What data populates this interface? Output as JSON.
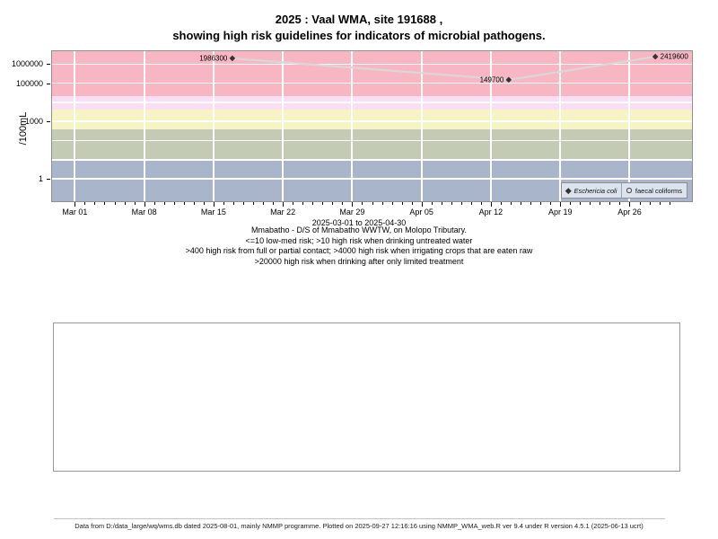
{
  "title": {
    "line1": "2025 : Vaal WMA, site 191688 ,",
    "line2": "showing high risk guidelines for indicators of microbial pathogens."
  },
  "chart_data": {
    "type": "line",
    "title": "2025 : Vaal WMA, site 191688 , showing high risk guidelines for indicators of microbial pathogens.",
    "xlabel": "2025-03-01 to 2025-04-30",
    "ylabel": "/100mL",
    "grid": true,
    "gridline_color": "#FFFFFF",
    "x_axis": {
      "start_date": "2025-03-01",
      "end_date": "2025-04-30",
      "range_days": [
        -2.3,
        62.3
      ],
      "minor_tick_day_span": [
        0,
        60
      ],
      "ticks": [
        {
          "label": "Mar 01",
          "day": 0
        },
        {
          "label": "Mar 08",
          "day": 7
        },
        {
          "label": "Mar 15",
          "day": 14
        },
        {
          "label": "Mar 22",
          "day": 21
        },
        {
          "label": "Mar 29",
          "day": 28
        },
        {
          "label": "Apr 05",
          "day": 35
        },
        {
          "label": "Apr 12",
          "day": 42
        },
        {
          "label": "Apr 19",
          "day": 49
        },
        {
          "label": "Apr 26",
          "day": 56
        }
      ]
    },
    "y_axis": {
      "scale": "log10",
      "log10_range": [
        -1.17,
        6.67
      ],
      "ticks": [
        {
          "label": "1000000",
          "value": 1000000
        },
        {
          "label": "100000",
          "value": 100000
        },
        {
          "label": "1000",
          "value": 1000
        },
        {
          "label": "1",
          "value": 1
        }
      ],
      "gridline_values": [
        1,
        10,
        100,
        1000,
        10000,
        100000,
        1000000
      ]
    },
    "bands": [
      {
        "name": "gt-20000-drinking-limited-treatment",
        "from": 20000,
        "to": null,
        "color": "#F8B6C2"
      },
      {
        "name": "4000-20000-irrigating-raw-crops",
        "from": 4000,
        "to": 20000,
        "color": "#FADEF3"
      },
      {
        "name": "400-4000-full-partial-contact",
        "from": 400,
        "to": 4000,
        "color": "#F6F3C4"
      },
      {
        "name": "10-400-drinking-untreated",
        "from": 10,
        "to": 400,
        "color": "#C3CBB5"
      },
      {
        "name": "lte-10-low-med-risk",
        "from": null,
        "to": 10,
        "color": "#A8B5CB"
      }
    ],
    "series": [
      {
        "name": "Eschericia coli",
        "marker": "filled-diamond",
        "marker_color": "#333333",
        "line_color": "#D8D8D8",
        "points": [
          {
            "day": 15.9,
            "value": 1986300,
            "label": "1986300",
            "label_side": "left"
          },
          {
            "day": 43.8,
            "value": 149700,
            "label": "149700",
            "label_side": "left"
          },
          {
            "day": 58.6,
            "value": 2419600,
            "label": "2419600",
            "label_side": "right"
          }
        ]
      },
      {
        "name": "faecal coliforms",
        "marker": "open-circle",
        "marker_color": "#444444",
        "points": []
      }
    ],
    "legend": {
      "position": "bottom-right",
      "items": [
        {
          "symbol": "filled-diamond",
          "label": "Eschericia coli",
          "italic": true
        },
        {
          "symbol": "open-circle",
          "label": "faecal coliforms",
          "italic": false
        }
      ]
    }
  },
  "caption": {
    "line1": "Mmabatho - D/S of Mmabatho WWTW, on Molopo Tributary.",
    "line2": "<=10 low-med risk; >10 high risk when drinking untreated water",
    "line3": ">400 high risk from full or partial contact; >4000 high risk when irrigating crops that are eaten raw",
    "line4": ">20000 high risk when drinking after only limited treatment"
  },
  "footer": {
    "text": "Data from D:/data_large/wq/wms.db dated 2025-08-01, mainly NMMP programme. Plotted on 2025-09-27 12:16:16 using NMMP_WMA_web.R ver 9.4 under R version 4.5.1 (2025-06-13 ucrt)"
  }
}
